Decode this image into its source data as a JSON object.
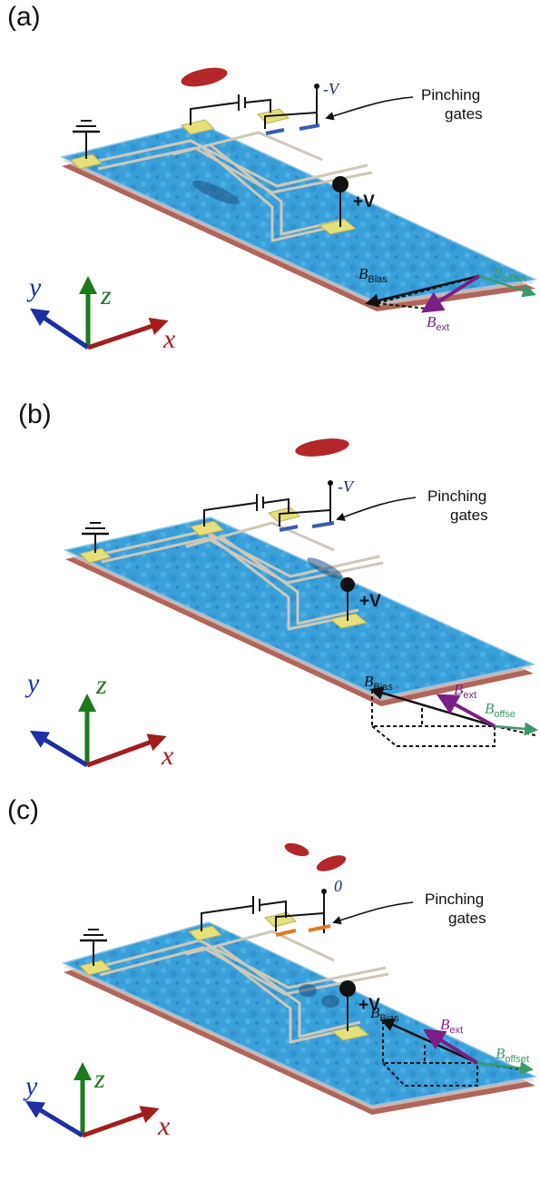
{
  "panels": [
    {
      "label": "(a)",
      "gates_label_line1": "Pinching",
      "gates_label_line2": "gates",
      "gate_voltage": "-V",
      "drain_voltage": "+V",
      "axes": {
        "x": "x",
        "y": "y",
        "z": "z"
      },
      "field": {
        "bias_sym": "B",
        "bias_sub": "Bias",
        "ext_sym": "B",
        "ext_sub": "ext",
        "offset_sym": "B",
        "offset_sub": "offset"
      }
    },
    {
      "label": "(b)",
      "gates_label_line1": "Pinching",
      "gates_label_line2": "gates",
      "gate_voltage": "-V",
      "drain_voltage": "+V",
      "axes": {
        "x": "x",
        "y": "y",
        "z": "z"
      },
      "field": {
        "bias_sym": "B",
        "bias_sub": "Bias",
        "ext_sym": "B",
        "ext_sub": "ext",
        "offset_sym": "B",
        "offset_sub": "offse"
      }
    },
    {
      "label": "(c)",
      "gates_label_line1": "Pinching",
      "gates_label_line2": "gates",
      "gate_voltage": "0",
      "drain_voltage": "+V",
      "axes": {
        "x": "x",
        "y": "y",
        "z": "z"
      },
      "field": {
        "bias_sym": "B",
        "bias_sub": "Bias",
        "ext_sym": "B",
        "ext_sub": "ext",
        "offset_sym": "B",
        "offset_sub": "offset"
      }
    }
  ],
  "colors": {
    "substrate_top": "#3a9fd8",
    "substrate_dark": "#1f6fb0",
    "substrate_base": "#b0655a",
    "pad": "#e6e07a",
    "guide": "#c9c3b6",
    "cloud": "#b3262a",
    "x_axis": "#a31d1d",
    "y_axis": "#1c2fa3",
    "z_axis": "#1b7a1b",
    "b_ext": "#7a1f85",
    "b_offset": "#3a9a6a",
    "b_bias": "#111111",
    "gate_active": "#3c5ab4",
    "gate_open": "#e07a2a"
  }
}
